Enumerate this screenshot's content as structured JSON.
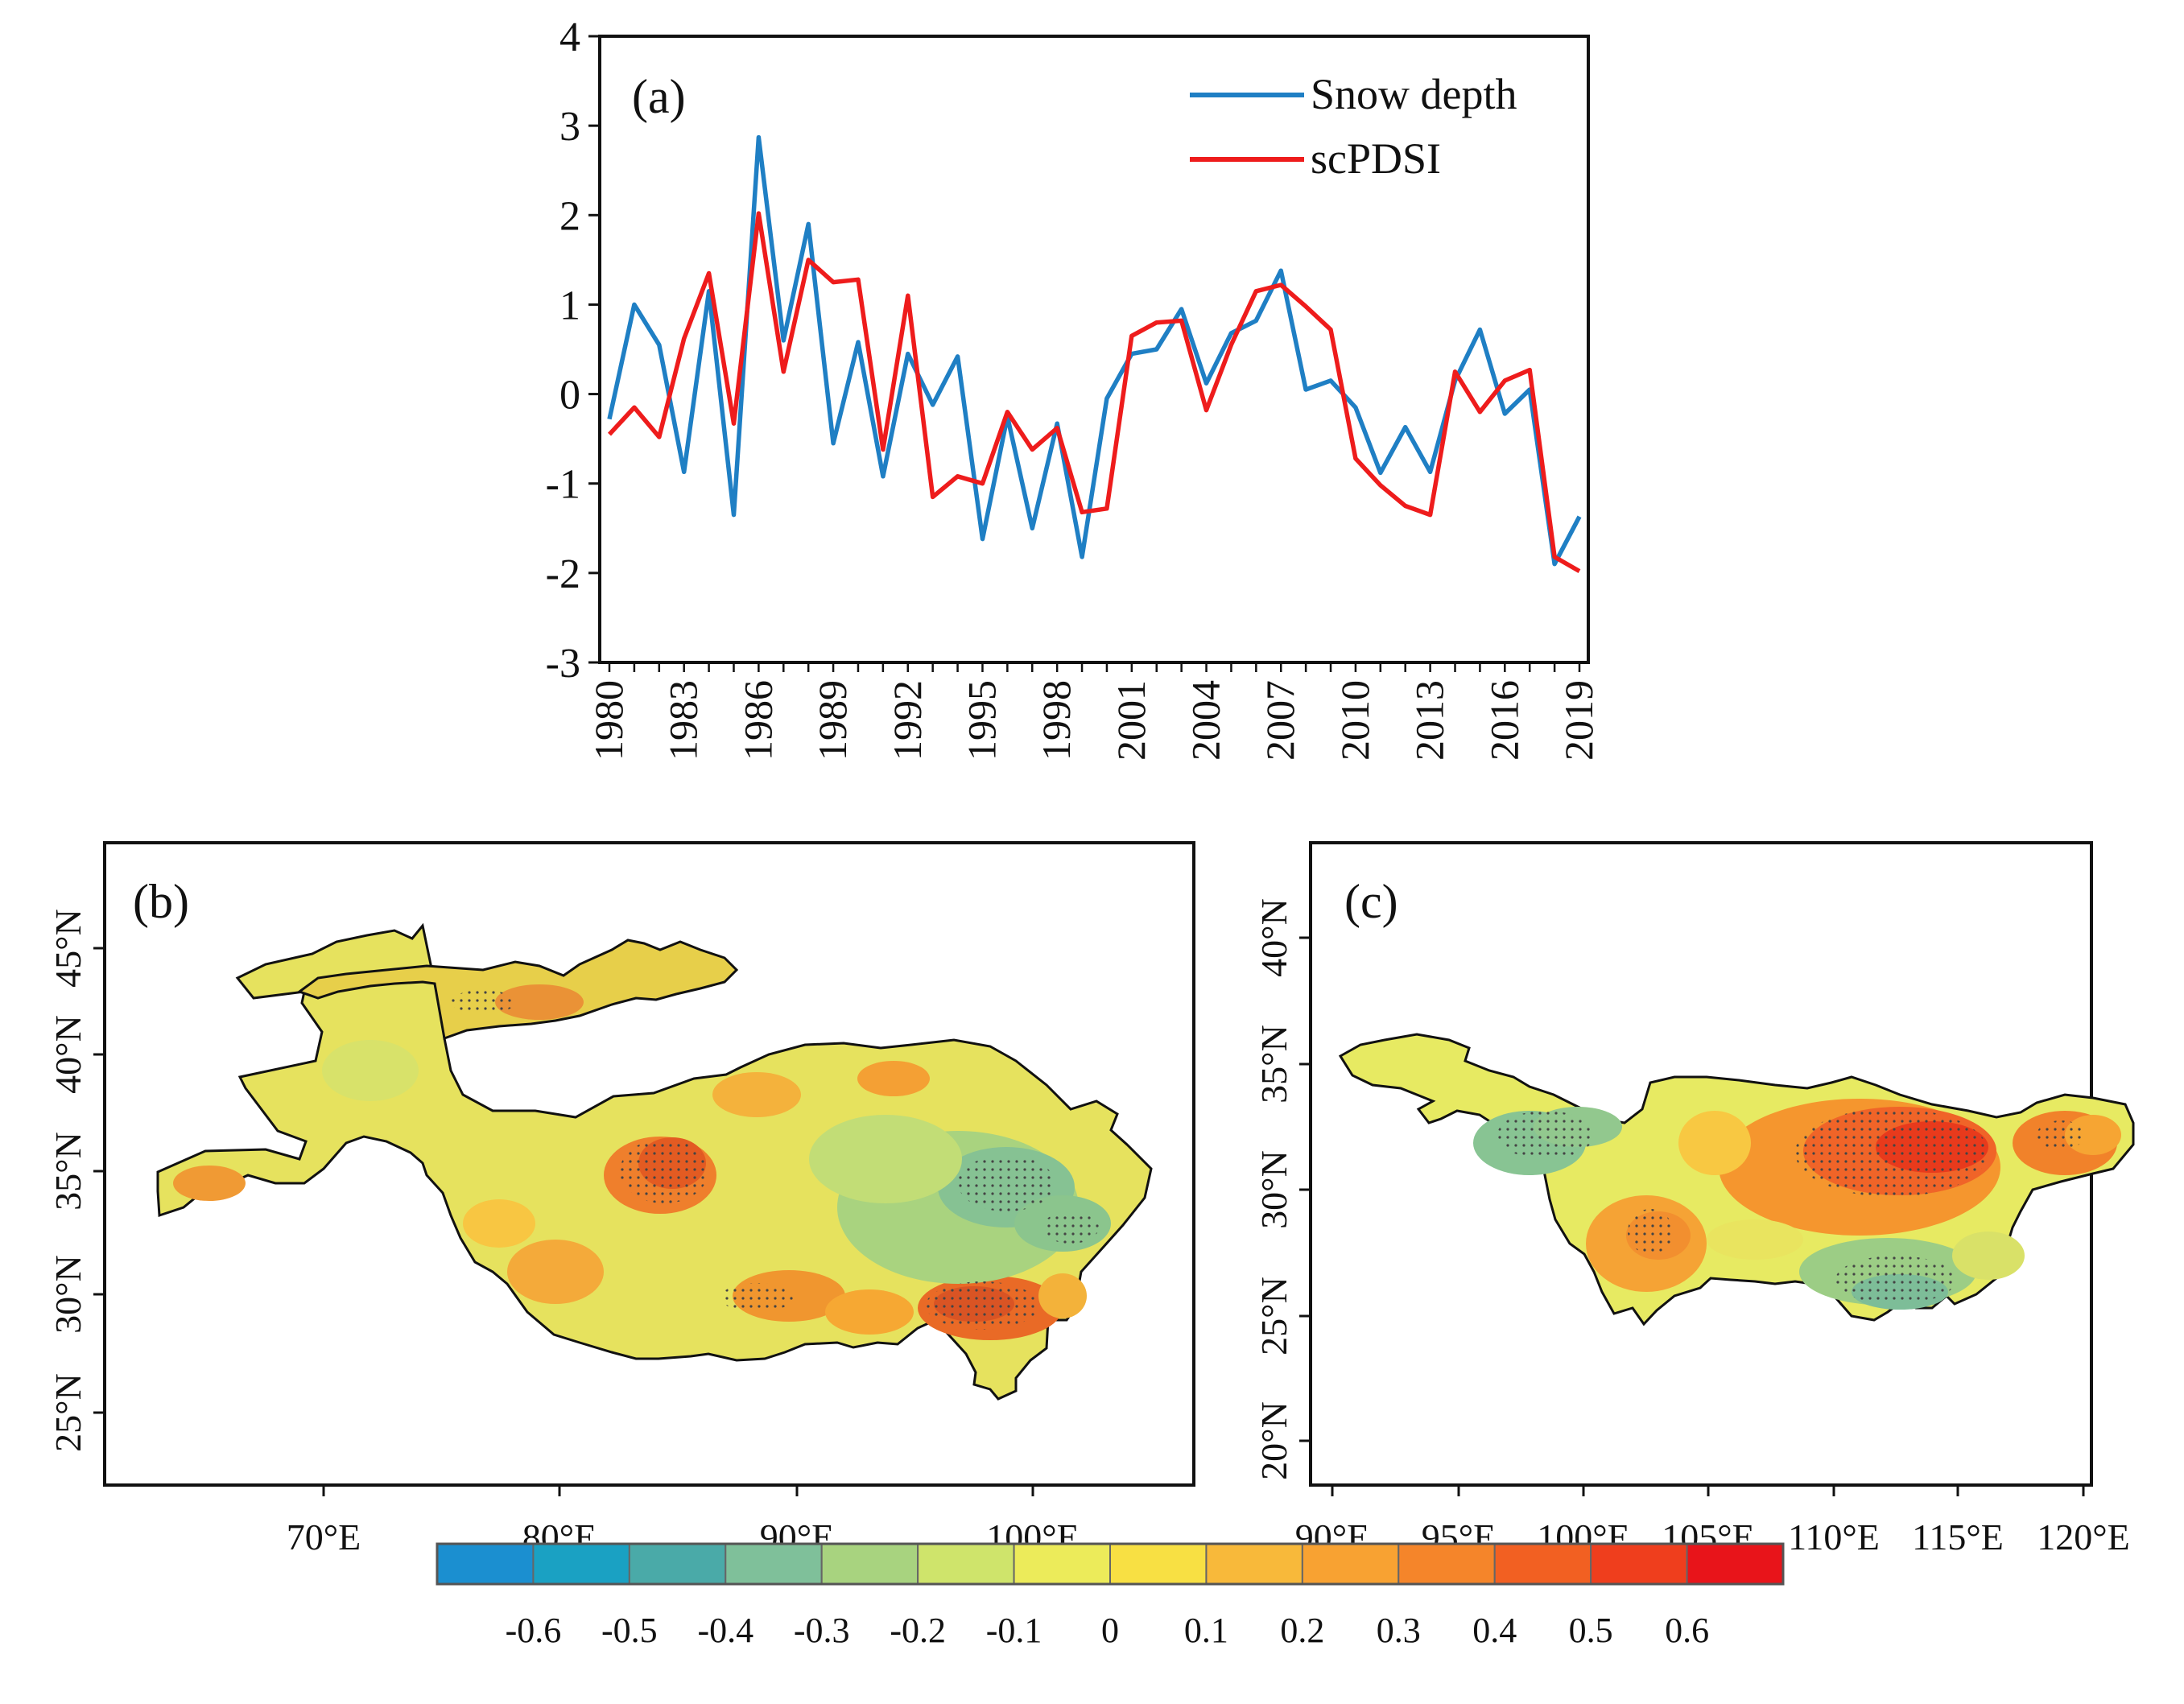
{
  "chart_data": [
    {
      "panel": "(a)",
      "type": "line",
      "title": "",
      "xlabel": "",
      "ylabel": "",
      "ylim": [
        -3,
        4
      ],
      "yticks": [
        4,
        3,
        2,
        1,
        0,
        -1,
        -2,
        -3
      ],
      "x": [
        1980,
        1981,
        1982,
        1983,
        1984,
        1985,
        1986,
        1987,
        1988,
        1989,
        1990,
        1991,
        1992,
        1993,
        1994,
        1995,
        1996,
        1997,
        1998,
        1999,
        2000,
        2001,
        2002,
        2003,
        2004,
        2005,
        2006,
        2007,
        2008,
        2009,
        2010,
        2011,
        2012,
        2013,
        2014,
        2015,
        2016,
        2017,
        2018,
        2019
      ],
      "xtick_labels": [
        "1980",
        "1983",
        "1986",
        "1989",
        "1992",
        "1995",
        "1998",
        "2001",
        "2004",
        "2007",
        "2010",
        "2013",
        "2016",
        "2019"
      ],
      "series": [
        {
          "name": "Snow depth",
          "color": "#1f7fc4",
          "values": [
            -0.28,
            1.0,
            0.55,
            -0.87,
            1.15,
            -1.35,
            2.87,
            0.6,
            1.9,
            -0.55,
            0.58,
            -0.92,
            0.45,
            -0.12,
            0.42,
            -1.62,
            -0.25,
            -1.5,
            -0.33,
            -1.82,
            -0.05,
            0.45,
            0.5,
            0.95,
            0.12,
            0.68,
            0.82,
            1.38,
            0.05,
            0.15,
            -0.15,
            -0.88,
            -0.37,
            -0.87,
            0.15,
            0.72,
            -0.22,
            0.05,
            -1.9,
            -1.37
          ]
        },
        {
          "name": "scPDSI",
          "color": "#ee1c1c",
          "values": [
            -0.45,
            -0.15,
            -0.48,
            0.62,
            1.35,
            -0.33,
            2.02,
            0.25,
            1.5,
            1.25,
            1.28,
            -0.62,
            1.1,
            -1.15,
            -0.92,
            -1.0,
            -0.2,
            -0.62,
            -0.38,
            -1.32,
            -1.28,
            0.65,
            0.8,
            0.82,
            -0.18,
            0.55,
            1.15,
            1.22,
            0.98,
            0.72,
            -0.72,
            -1.02,
            -1.25,
            -1.35,
            0.25,
            -0.2,
            0.15,
            0.27,
            -1.82,
            -1.98
          ]
        }
      ]
    },
    {
      "panel": "(b)",
      "type": "heatmap",
      "description": "Spatial correlation map over the Tibetan Plateau",
      "xtick_labels": [
        "70°E",
        "80°E",
        "90°E",
        "100°E"
      ],
      "ytick_labels": [
        "45°N",
        "40°N",
        "35°N",
        "30°N",
        "25°N"
      ]
    },
    {
      "panel": "(c)",
      "type": "heatmap",
      "description": "Spatial correlation map over the Yangtze River basin",
      "xtick_labels": [
        "90°E",
        "95°E",
        "100°E",
        "105°E",
        "110°E",
        "115°E",
        "120°E"
      ],
      "ytick_labels": [
        "40°N",
        "35°N",
        "30°N",
        "25°N",
        "20°N"
      ]
    }
  ],
  "colorbar": {
    "labels": [
      "-0.6",
      "-0.5",
      "-0.4",
      "-0.3",
      "-0.2",
      "-0.1",
      "0",
      "0.1",
      "0.2",
      "0.3",
      "0.4",
      "0.5",
      "0.6"
    ],
    "colors": [
      "#1b8fd0",
      "#1aa1c3",
      "#4aaaa8",
      "#7fc09a",
      "#a8d37f",
      "#cfe46b",
      "#eceb5a",
      "#f8e043",
      "#f8b93a",
      "#f8a232",
      "#f5852a",
      "#f26022",
      "#ef3e1d",
      "#e8141a"
    ]
  }
}
